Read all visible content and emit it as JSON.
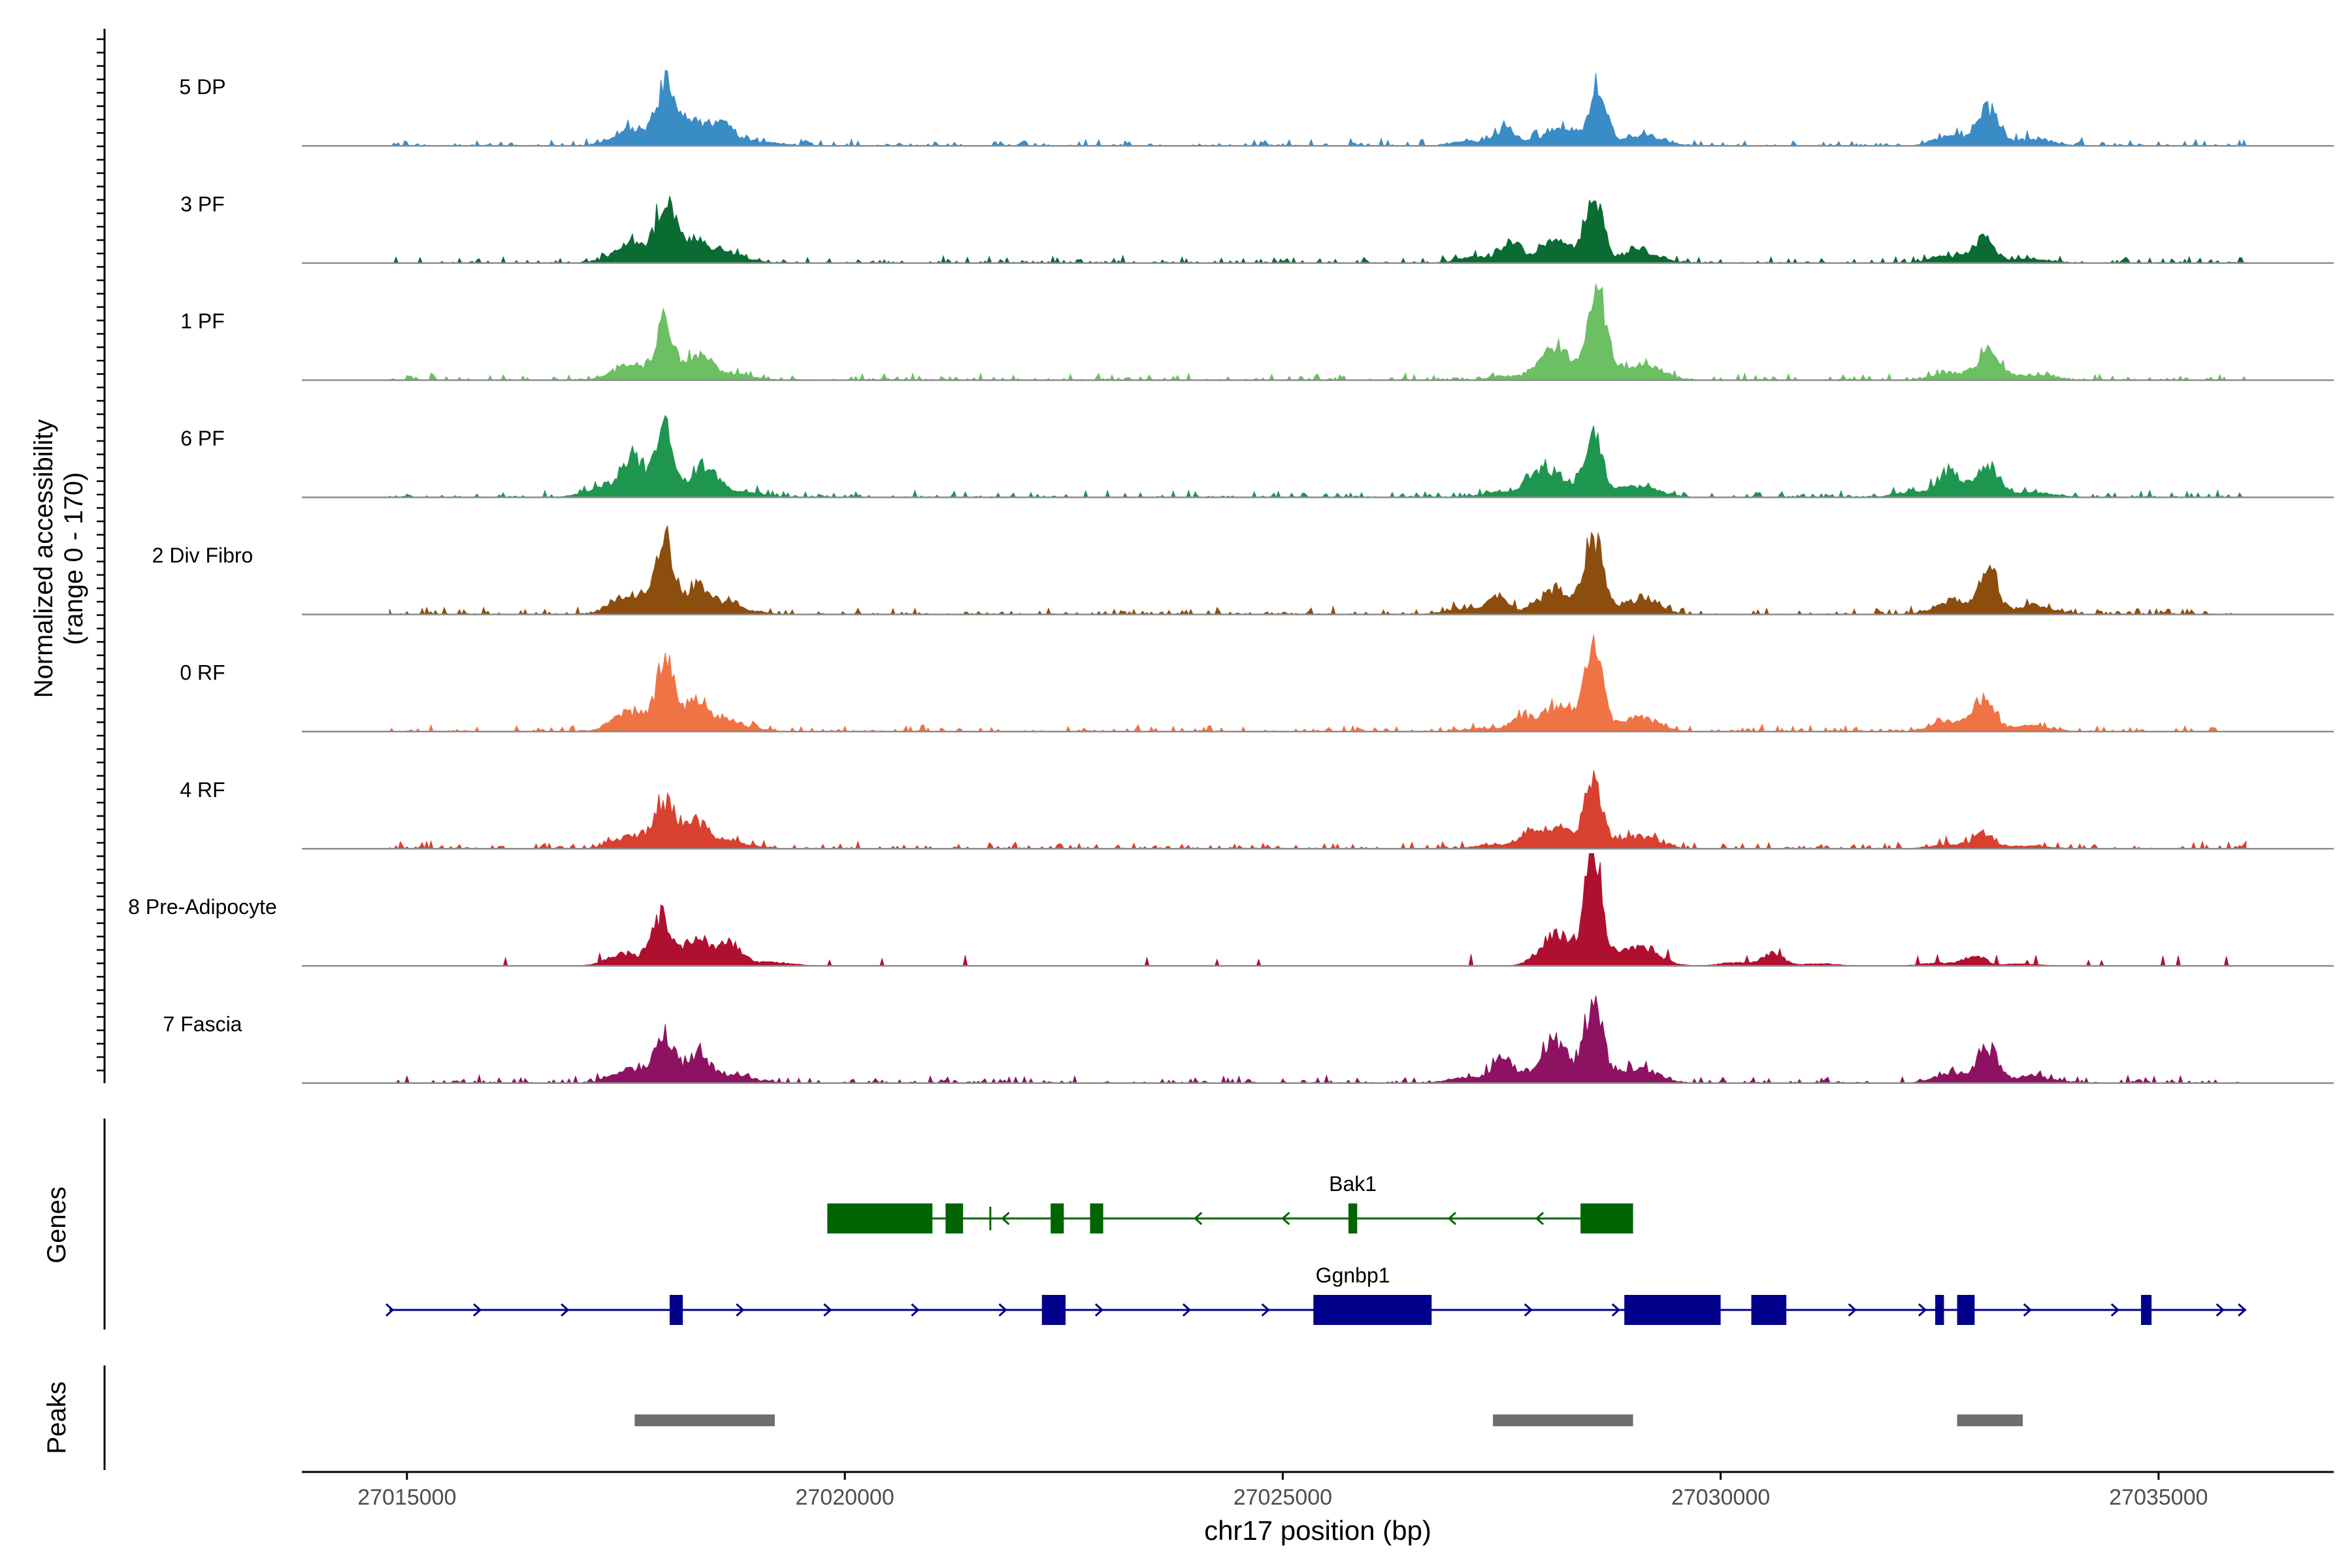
{
  "chart_data": {
    "type": "area",
    "title": "",
    "region": "chr17",
    "xlabel": "chr17 position (bp)",
    "ylabel": "Normalized accessibility",
    "ylabel_range": "(range 0 - 170)",
    "xlim": [
      27013800,
      27037000
    ],
    "ylim": [
      0,
      170
    ],
    "x_ticks": [
      27015000,
      27020000,
      27025000,
      27030000,
      27035000
    ],
    "x_tick_labels": [
      "27015000",
      "27020000",
      "27025000",
      "27030000",
      "27035000"
    ],
    "tracks": [
      {
        "name": "5 DP",
        "color": "#3a8cc6",
        "peaks": [
          [
            27017950,
            85
          ],
          [
            27018250,
            22
          ],
          [
            27018600,
            20
          ],
          [
            27027550,
            25
          ],
          [
            27028600,
            88
          ],
          [
            27033050,
            55
          ]
        ]
      },
      {
        "name": "3 PF",
        "color": "#0a6b33",
        "peaks": [
          [
            27017950,
            88
          ],
          [
            27018250,
            28
          ],
          [
            27027600,
            30
          ],
          [
            27028550,
            98
          ],
          [
            27033000,
            35
          ]
        ]
      },
      {
        "name": "1 PF",
        "color": "#6cbf63",
        "peaks": [
          [
            27017950,
            78
          ],
          [
            27018300,
            25
          ],
          [
            27028000,
            20
          ],
          [
            27028600,
            125
          ],
          [
            27033050,
            40
          ]
        ]
      },
      {
        "name": "6 PF",
        "color": "#1f9650",
        "peaks": [
          [
            27017600,
            38
          ],
          [
            27017950,
            85
          ],
          [
            27018400,
            30
          ],
          [
            27027900,
            30
          ],
          [
            27028550,
            95
          ],
          [
            27032600,
            28
          ],
          [
            27033050,
            40
          ]
        ]
      },
      {
        "name": "2 Div Fibro",
        "color": "#8c4e0f",
        "peaks": [
          [
            27017950,
            100
          ],
          [
            27018300,
            30
          ],
          [
            27027450,
            25
          ],
          [
            27028550,
            118
          ],
          [
            27033050,
            75
          ]
        ]
      },
      {
        "name": "0 RF",
        "color": "#f07345",
        "peaks": [
          [
            27017950,
            98
          ],
          [
            27018300,
            32
          ],
          [
            27027700,
            18
          ],
          [
            27028550,
            120
          ],
          [
            27033000,
            50
          ]
        ]
      },
      {
        "name": "4 RF",
        "color": "#d84030",
        "peaks": [
          [
            27017950,
            60
          ],
          [
            27018300,
            30
          ],
          [
            27027800,
            20
          ],
          [
            27028550,
            100
          ],
          [
            27033000,
            22
          ]
        ]
      },
      {
        "name": "8 Pre-Adipocyte",
        "color": "#b01030",
        "peaks": [
          [
            27017900,
            65
          ],
          [
            27018300,
            25
          ],
          [
            27018700,
            25
          ],
          [
            27028550,
            170
          ],
          [
            27030600,
            18
          ],
          [
            27032900,
            15
          ]
        ]
      },
      {
        "name": "7 Fascia",
        "color": "#8e1262",
        "peaks": [
          [
            27017950,
            65
          ],
          [
            27018300,
            35
          ],
          [
            27027500,
            30
          ],
          [
            27028100,
            25
          ],
          [
            27028550,
            120
          ],
          [
            27033050,
            50
          ]
        ]
      }
    ],
    "genes_label": "Genes",
    "genes": [
      {
        "name": "Bak1",
        "strand": "-",
        "color": "#006400",
        "start": 27019800,
        "end": 27029000
      },
      {
        "name": "Ggnbp1",
        "strand": "+",
        "color": "#00008b",
        "start": 27014800,
        "end": 27036000
      }
    ],
    "peaks_label": "Peaks",
    "peak_regions": [
      [
        27017600,
        27019200
      ],
      [
        27027400,
        27029000
      ],
      [
        27032700,
        27033450
      ]
    ]
  }
}
